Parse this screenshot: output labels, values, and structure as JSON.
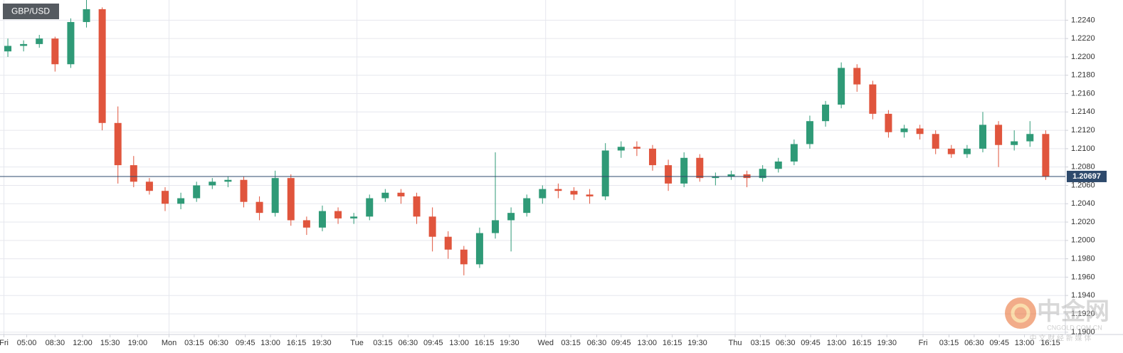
{
  "chart_data": {
    "type": "candlestick",
    "symbol": "GBP/USD",
    "up_color": "#2f9a77",
    "down_color": "#e0553d",
    "grid": true,
    "last_price": 1.20697,
    "last_price_color": "#2e4a6c",
    "xlim": [
      0,
      135.5
    ],
    "xticks": [
      {
        "value": 0.5,
        "label": "Fri"
      },
      {
        "value": 3.4,
        "label": "05:00"
      },
      {
        "value": 7.0,
        "label": "08:30"
      },
      {
        "value": 10.5,
        "label": "12:00"
      },
      {
        "value": 14.0,
        "label": "15:30"
      },
      {
        "value": 17.5,
        "label": "19:00"
      },
      {
        "value": 21.5,
        "label": "Mon"
      },
      {
        "value": 24.7,
        "label": "03:15"
      },
      {
        "value": 27.8,
        "label": "06:30"
      },
      {
        "value": 31.2,
        "label": "09:45"
      },
      {
        "value": 34.4,
        "label": "13:00"
      },
      {
        "value": 37.7,
        "label": "16:15"
      },
      {
        "value": 40.9,
        "label": "19:30"
      },
      {
        "value": 45.4,
        "label": "Tue"
      },
      {
        "value": 48.7,
        "label": "03:15"
      },
      {
        "value": 51.9,
        "label": "06:30"
      },
      {
        "value": 55.1,
        "label": "09:45"
      },
      {
        "value": 58.4,
        "label": "13:00"
      },
      {
        "value": 61.6,
        "label": "16:15"
      },
      {
        "value": 64.8,
        "label": "19:30"
      },
      {
        "value": 69.4,
        "label": "Wed"
      },
      {
        "value": 72.6,
        "label": "03:15"
      },
      {
        "value": 75.9,
        "label": "06:30"
      },
      {
        "value": 79.0,
        "label": "09:45"
      },
      {
        "value": 82.3,
        "label": "13:00"
      },
      {
        "value": 85.5,
        "label": "16:15"
      },
      {
        "value": 88.7,
        "label": "19:30"
      },
      {
        "value": 93.5,
        "label": "Thu"
      },
      {
        "value": 96.7,
        "label": "03:15"
      },
      {
        "value": 99.9,
        "label": "06:30"
      },
      {
        "value": 103.1,
        "label": "09:45"
      },
      {
        "value": 106.4,
        "label": "13:00"
      },
      {
        "value": 109.6,
        "label": "16:15"
      },
      {
        "value": 112.8,
        "label": "19:30"
      },
      {
        "value": 117.4,
        "label": "Fri"
      },
      {
        "value": 120.7,
        "label": "03:15"
      },
      {
        "value": 123.9,
        "label": "06:30"
      },
      {
        "value": 127.1,
        "label": "09:45"
      },
      {
        "value": 130.3,
        "label": "13:00"
      },
      {
        "value": 133.6,
        "label": "16:15"
      }
    ],
    "ylim": [
      1.18975,
      1.2262
    ],
    "yticks": [
      {
        "value": 1.19,
        "label": "1.1900"
      },
      {
        "value": 1.192,
        "label": "1.1920"
      },
      {
        "value": 1.194,
        "label": "1.1940"
      },
      {
        "value": 1.196,
        "label": "1.1960"
      },
      {
        "value": 1.198,
        "label": "1.1980"
      },
      {
        "value": 1.2,
        "label": "1.2000"
      },
      {
        "value": 1.202,
        "label": "1.2020"
      },
      {
        "value": 1.204,
        "label": "1.2040"
      },
      {
        "value": 1.206,
        "label": "1.2060"
      },
      {
        "value": 1.208,
        "label": "1.2080"
      },
      {
        "value": 1.21,
        "label": "1.2100"
      },
      {
        "value": 1.212,
        "label": "1.2120"
      },
      {
        "value": 1.214,
        "label": "1.2140"
      },
      {
        "value": 1.216,
        "label": "1.2160"
      },
      {
        "value": 1.218,
        "label": "1.2180"
      },
      {
        "value": 1.22,
        "label": "1.2200"
      },
      {
        "value": 1.222,
        "label": "1.2220"
      },
      {
        "value": 1.224,
        "label": "1.2240"
      }
    ],
    "x": [
      1,
      3,
      5,
      7,
      9,
      11,
      13,
      15,
      17,
      19,
      21,
      23,
      25,
      27,
      29,
      31,
      33,
      35,
      37,
      39,
      41,
      43,
      45,
      47,
      49,
      51,
      53,
      55,
      57,
      59,
      61,
      63,
      65,
      67,
      69,
      71,
      73,
      75,
      77,
      79,
      81,
      83,
      85,
      87,
      89,
      91,
      93,
      95,
      97,
      99,
      101,
      103,
      105,
      107,
      109,
      111,
      113,
      115,
      117,
      119,
      121,
      123,
      125,
      127,
      129,
      131,
      133
    ],
    "open": [
      1.2206,
      1.2212,
      1.2214,
      1.222,
      1.2192,
      1.2238,
      1.2252,
      1.2128,
      1.2082,
      1.2064,
      1.2054,
      1.204,
      1.2046,
      1.206,
      1.2064,
      1.2066,
      1.2042,
      1.203,
      1.2068,
      1.2022,
      1.2014,
      1.2032,
      1.2024,
      1.2026,
      1.2046,
      1.2052,
      1.2048,
      1.2026,
      1.2004,
      1.199,
      1.1974,
      1.2008,
      1.2022,
      1.203,
      1.2046,
      1.2056,
      1.2054,
      1.205,
      1.2048,
      1.2098,
      1.2102,
      1.21,
      1.2082,
      1.2062,
      1.209,
      1.2068,
      1.207,
      1.2072,
      1.2068,
      1.2078,
      1.2086,
      1.2105,
      1.213,
      1.2148,
      1.2188,
      1.217,
      1.2138,
      1.2118,
      1.2122,
      1.2116,
      1.21,
      1.2094,
      1.21,
      1.2126,
      1.2104,
      1.2108,
      1.2116
    ],
    "high": [
      1.222,
      1.2218,
      1.2224,
      1.2222,
      1.2242,
      1.2262,
      1.2254,
      1.2146,
      1.2092,
      1.2068,
      1.2058,
      1.2052,
      1.2064,
      1.2068,
      1.207,
      1.207,
      1.2048,
      1.2076,
      1.2072,
      1.2026,
      1.2038,
      1.2036,
      1.203,
      1.205,
      1.2056,
      1.2056,
      1.2052,
      1.2036,
      1.201,
      1.1994,
      1.2014,
      1.2096,
      1.2036,
      1.205,
      1.206,
      1.2062,
      1.2058,
      1.2056,
      1.2106,
      1.2108,
      1.2108,
      1.2104,
      1.2088,
      1.2096,
      1.2094,
      1.2074,
      1.2076,
      1.2076,
      1.2082,
      1.209,
      1.211,
      1.2136,
      1.2152,
      1.2194,
      1.2192,
      1.2174,
      1.2142,
      1.2126,
      1.2126,
      1.212,
      1.2104,
      1.2104,
      1.214,
      1.213,
      1.212,
      1.213,
      1.212
    ],
    "low": [
      1.22,
      1.2206,
      1.221,
      1.2184,
      1.2188,
      1.2232,
      1.212,
      1.2062,
      1.2058,
      1.205,
      1.2032,
      1.2034,
      1.2042,
      1.2056,
      1.2058,
      1.2036,
      1.2022,
      1.2026,
      1.2016,
      1.2006,
      1.201,
      1.2018,
      1.2018,
      1.2022,
      1.2042,
      1.204,
      1.2018,
      1.1988,
      1.198,
      1.1962,
      1.197,
      1.2002,
      1.1988,
      1.2026,
      1.204,
      1.2046,
      1.2044,
      1.204,
      1.2044,
      1.209,
      1.2092,
      1.2076,
      1.2054,
      1.2058,
      1.2064,
      1.206,
      1.2066,
      1.2058,
      1.2064,
      1.2074,
      1.2082,
      1.21,
      1.2124,
      1.2144,
      1.2162,
      1.2132,
      1.2112,
      1.2112,
      1.211,
      1.2094,
      1.209,
      1.209,
      1.2096,
      1.208,
      1.2098,
      1.2102,
      1.2066
    ],
    "close": [
      1.2212,
      1.2214,
      1.222,
      1.2192,
      1.2238,
      1.2252,
      1.2128,
      1.2082,
      1.2064,
      1.2054,
      1.204,
      1.2046,
      1.206,
      1.2064,
      1.2066,
      1.2042,
      1.203,
      1.2068,
      1.2022,
      1.2014,
      1.2032,
      1.2024,
      1.2026,
      1.2046,
      1.2052,
      1.2048,
      1.2026,
      1.2004,
      1.199,
      1.1974,
      1.2008,
      1.2022,
      1.203,
      1.2046,
      1.2056,
      1.2054,
      1.205,
      1.2048,
      1.2098,
      1.2102,
      1.21,
      1.2082,
      1.2062,
      1.209,
      1.2068,
      1.207,
      1.2072,
      1.2068,
      1.2078,
      1.2086,
      1.2105,
      1.213,
      1.2148,
      1.2188,
      1.217,
      1.2138,
      1.2118,
      1.2122,
      1.2116,
      1.21,
      1.2094,
      1.21,
      1.2126,
      1.2104,
      1.2108,
      1.2116,
      1.20697
    ]
  },
  "watermark": {
    "logo": "中金网",
    "domain": "CNGOLD.COM.CN",
    "tagline": "中 文 财 经 新 媒 体"
  }
}
